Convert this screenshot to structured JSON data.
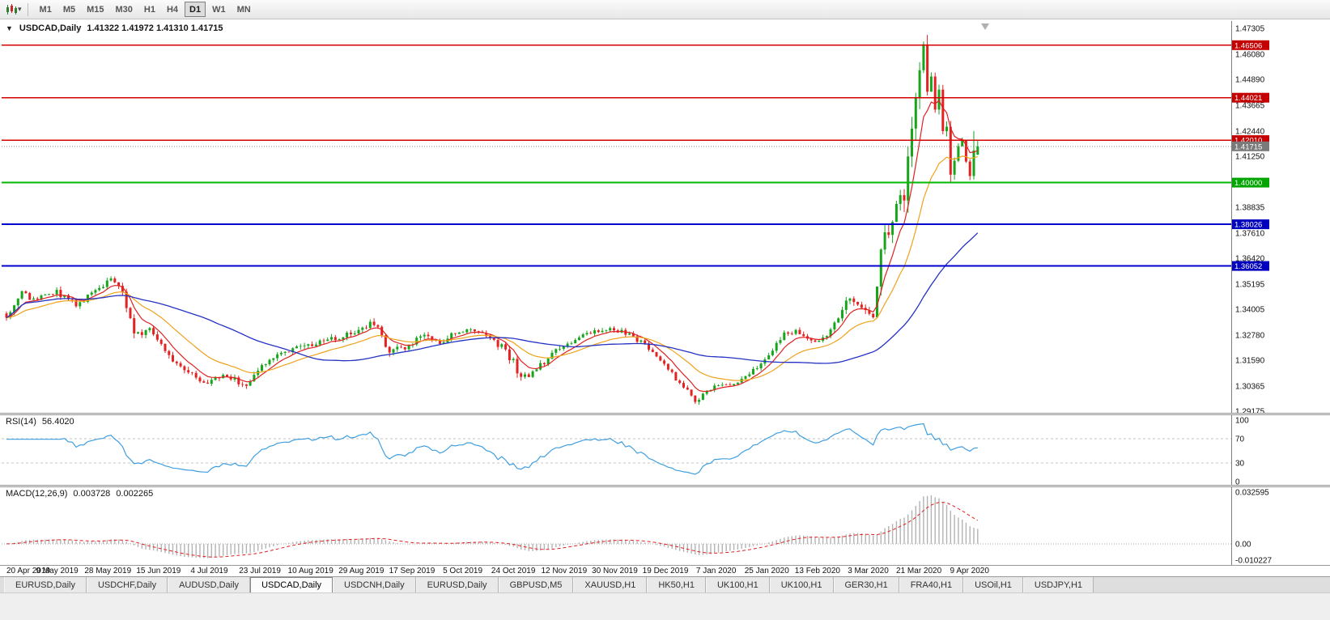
{
  "toolbar": {
    "timeframes": [
      "M1",
      "M5",
      "M15",
      "M30",
      "H1",
      "H4",
      "D1",
      "W1",
      "MN"
    ],
    "active_timeframe": "D1",
    "icons": {
      "chart_type": "candlestick-chart-icon",
      "chart_type_caret": "caret-down-icon"
    }
  },
  "chart_header": {
    "symbol": "USDCAD,Daily",
    "ohlc": "1.41322 1.41972 1.41310 1.41715"
  },
  "tabs": {
    "items": [
      "EURUSD,Daily",
      "USDCHF,Daily",
      "AUDUSD,Daily",
      "USDCAD,Daily",
      "USDCNH,Daily",
      "EURUSD,Daily",
      "GBPUSD,M5",
      "XAUUSD,H1",
      "HK50,H1",
      "UK100,H1",
      "UK100,H1",
      "GER30,H1",
      "FRA40,H1",
      "USOil,H1",
      "USDJPY,H1"
    ],
    "active_index": 3
  },
  "chart_data": {
    "type": "candlestick",
    "symbol": "USDCAD",
    "timeframe": "Daily",
    "ohlc_display": {
      "open": "1.41322",
      "high": "1.41972",
      "low": "1.41310",
      "close": "1.41715"
    },
    "bars": 252,
    "ylim": [
      1.29175,
      1.47305
    ],
    "up_color": "#16a51b",
    "down_color": "#e32222",
    "price_anchors": [
      [
        0,
        1.338,
        0.0045
      ],
      [
        4,
        1.347,
        0.004
      ],
      [
        8,
        1.3445,
        0.003
      ],
      [
        13,
        1.348,
        0.0035
      ],
      [
        18,
        1.3425,
        0.003
      ],
      [
        23,
        1.348,
        0.003
      ],
      [
        27,
        1.356,
        0.004
      ],
      [
        30,
        1.348,
        0.004
      ],
      [
        33,
        1.327,
        0.005
      ],
      [
        37,
        1.332,
        0.0035
      ],
      [
        42,
        1.3185,
        0.0035
      ],
      [
        47,
        1.3095,
        0.0035
      ],
      [
        52,
        1.3055,
        0.003
      ],
      [
        57,
        1.3085,
        0.003
      ],
      [
        62,
        1.3035,
        0.003
      ],
      [
        66,
        1.313,
        0.003
      ],
      [
        70,
        1.319,
        0.003
      ],
      [
        75,
        1.322,
        0.003
      ],
      [
        80,
        1.324,
        0.003
      ],
      [
        85,
        1.326,
        0.003
      ],
      [
        90,
        1.329,
        0.003
      ],
      [
        95,
        1.334,
        0.004
      ],
      [
        99,
        1.3195,
        0.004
      ],
      [
        104,
        1.323,
        0.003
      ],
      [
        108,
        1.328,
        0.003
      ],
      [
        112,
        1.3245,
        0.003
      ],
      [
        116,
        1.329,
        0.003
      ],
      [
        120,
        1.331,
        0.003
      ],
      [
        124,
        1.3275,
        0.003
      ],
      [
        128,
        1.322,
        0.0035
      ],
      [
        131,
        1.315,
        0.004
      ],
      [
        133,
        1.306,
        0.005
      ],
      [
        136,
        1.31,
        0.003
      ],
      [
        140,
        1.317,
        0.003
      ],
      [
        145,
        1.324,
        0.003
      ],
      [
        150,
        1.328,
        0.003
      ],
      [
        155,
        1.3305,
        0.003
      ],
      [
        158,
        1.33,
        0.0025
      ],
      [
        162,
        1.327,
        0.0025
      ],
      [
        166,
        1.322,
        0.0025
      ],
      [
        170,
        1.314,
        0.0025
      ],
      [
        174,
        1.305,
        0.0028
      ],
      [
        178,
        1.2965,
        0.003
      ],
      [
        181,
        1.301,
        0.0028
      ],
      [
        185,
        1.305,
        0.0025
      ],
      [
        189,
        1.3045,
        0.0022
      ],
      [
        193,
        1.311,
        0.0025
      ],
      [
        197,
        1.319,
        0.0028
      ],
      [
        201,
        1.329,
        0.003
      ],
      [
        205,
        1.329,
        0.0028
      ],
      [
        209,
        1.3235,
        0.0028
      ],
      [
        213,
        1.33,
        0.003
      ],
      [
        217,
        1.343,
        0.004
      ],
      [
        219,
        1.3445,
        0.004
      ],
      [
        222,
        1.339,
        0.004
      ],
      [
        224,
        1.336,
        0.0045
      ],
      [
        226,
        1.371,
        0.009
      ],
      [
        228,
        1.376,
        0.008
      ],
      [
        230,
        1.387,
        0.009
      ],
      [
        232,
        1.395,
        0.011
      ],
      [
        234,
        1.427,
        0.013
      ],
      [
        236,
        1.456,
        0.012
      ],
      [
        237,
        1.462,
        0.01
      ],
      [
        238,
        1.445,
        0.01
      ],
      [
        239,
        1.448,
        0.009
      ],
      [
        240,
        1.438,
        0.009
      ],
      [
        241,
        1.442,
        0.008
      ],
      [
        242,
        1.421,
        0.008
      ],
      [
        243,
        1.424,
        0.007
      ],
      [
        244,
        1.406,
        0.007
      ],
      [
        245,
        1.41,
        0.006
      ],
      [
        246,
        1.416,
        0.006
      ],
      [
        247,
        1.418,
        0.005
      ],
      [
        248,
        1.409,
        0.005
      ],
      [
        249,
        1.4035,
        0.005
      ],
      [
        250,
        1.415,
        0.005
      ],
      [
        251,
        1.41715,
        0.004
      ]
    ],
    "candle_overrides": {
      "178": {
        "l": 1.2952
      },
      "237": {
        "h": 1.4668
      },
      "250": {
        "h": 1.4244
      },
      "251": {
        "o": 1.41322,
        "h": 1.41972,
        "l": 1.4131,
        "c": 1.41715
      }
    },
    "moving_averages": [
      {
        "name": "ma-fast-line",
        "type": "ema",
        "period": 7,
        "color": "#e02020",
        "width": 1.2
      },
      {
        "name": "ma-medium-line",
        "type": "ema",
        "period": 20,
        "color": "#efa21c",
        "width": 1.2
      },
      {
        "name": "ma-slow-line",
        "type": "sma",
        "period": 50,
        "color": "#2433c4",
        "width": 1.3
      }
    ],
    "hlines": [
      {
        "value": 1.46506,
        "color": "#d40000",
        "width": 1.4
      },
      {
        "value": 1.44021,
        "color": "#d40000",
        "width": 1.4
      },
      {
        "value": 1.4201,
        "color": "#d40000",
        "width": 1.4
      },
      {
        "value": 1.41715,
        "color": "#8c8c8c",
        "width": 1,
        "dash": "1,2"
      },
      {
        "value": 1.4,
        "color": "#00b800",
        "width": 2
      },
      {
        "value": 1.38026,
        "color": "#0000cf",
        "width": 2
      },
      {
        "value": 1.36052,
        "color": "#0000cf",
        "width": 2
      }
    ],
    "price_ticks": [
      "1.47305",
      "1.46080",
      "1.44890",
      "1.43665",
      "1.42440",
      "1.41250",
      "1.38835",
      "1.37610",
      "1.36420",
      "1.35195",
      "1.34005",
      "1.32780",
      "1.31590",
      "1.30365",
      "1.29175"
    ],
    "price_badges": [
      {
        "text": "1.46506",
        "value": 1.46506,
        "color": "#c40000"
      },
      {
        "text": "1.44021",
        "value": 1.44021,
        "color": "#c40000"
      },
      {
        "text": "1.42010",
        "value": 1.4201,
        "color": "#c40000"
      },
      {
        "text": "1.41715",
        "value": 1.41715,
        "color": "#7a7a7a"
      },
      {
        "text": "1.40000",
        "value": 1.4,
        "color": "#00a500"
      },
      {
        "text": "1.38026",
        "value": 1.38026,
        "color": "#0000bd"
      },
      {
        "text": "1.36052",
        "value": 1.36052,
        "color": "#0000bd"
      }
    ],
    "date_labels": [
      "20 Apr 2019",
      "9 May 2019",
      "28 May 2019",
      "15 Jun 2019",
      "4 Jul 2019",
      "23 Jul 2019",
      "10 Aug 2019",
      "29 Aug 2019",
      "17 Sep 2019",
      "5 Oct 2019",
      "24 Oct 2019",
      "12 Nov 2019",
      "30 Nov 2019",
      "19 Dec 2019",
      "7 Jan 2020",
      "25 Jan 2020",
      "13 Feb 2020",
      "3 Mar 2020",
      "21 Mar 2020",
      "9 Apr 2020"
    ],
    "indicators": {
      "rsi": {
        "label": "RSI(14)",
        "value": "56.4020",
        "period": 14,
        "levels": [
          70,
          30
        ],
        "color": "#3f9fdf",
        "ticks": [
          {
            "text": "100",
            "v": 100
          },
          {
            "text": "70",
            "v": 70
          },
          {
            "text": "30",
            "v": 30
          },
          {
            "text": "0",
            "v": 0
          }
        ]
      },
      "macd": {
        "label": "MACD(12,26,9)",
        "main_value": "0.003728",
        "signal_value": "0.002265",
        "fast": 12,
        "slow": 26,
        "signal": 9,
        "ylim": [
          -0.010227,
          0.032595
        ],
        "hist_color": "#b3b3b3",
        "signal_color": "#e02020",
        "ticks": [
          {
            "text": "0.032595",
            "v": 0.032595
          },
          {
            "text": "0.00",
            "v": 0
          },
          {
            "text": "-0.010227",
            "v": -0.010227
          }
        ]
      }
    }
  }
}
